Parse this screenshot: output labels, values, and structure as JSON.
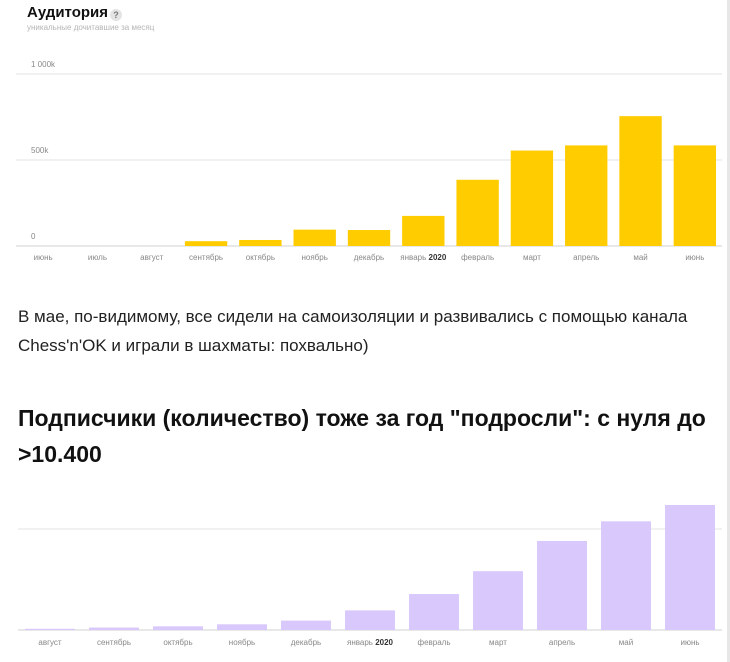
{
  "audience_chart": {
    "title": "Аудитория",
    "help_glyph": "?",
    "subtitle": "уникальные дочитавшие за месяц",
    "bar_color": "#ffcc00",
    "chart_data": {
      "type": "bar",
      "title": "Аудитория",
      "subtitle": "уникальные дочитавшие за месяц",
      "categories": [
        "июнь",
        "июль",
        "август",
        "сентябрь",
        "октябрь",
        "ноябрь",
        "декабрь",
        "январь 2020",
        "февраль",
        "март",
        "апрель",
        "май",
        "июнь"
      ],
      "values": [
        0,
        0,
        0,
        28,
        35,
        95,
        93,
        175,
        385,
        555,
        585,
        755,
        585
      ],
      "y_ticks": [
        0,
        500,
        1000
      ],
      "y_tick_labels": [
        "0",
        "500k",
        "1 000k"
      ],
      "ylim": [
        0,
        1000
      ],
      "grid": true,
      "legend": "none"
    }
  },
  "paragraph": "В мае, по-видимому, все сидели на самоизоляции и развивались с помощью канала Chess'n'OK и играли в шахматы: похвально)",
  "heading2": "Подписчики (количество) тоже за год \"подросли\": с нуля до >10.400",
  "subscribers_chart": {
    "bar_color": "#d9c8fb",
    "chart_data": {
      "type": "bar",
      "categories": [
        "август",
        "сентябрь",
        "октябрь",
        "ноябрь",
        "декабрь",
        "январь 2020",
        "февраль",
        "март",
        "апрель",
        "май",
        "июнь"
      ],
      "values": [
        0.15,
        0.3,
        0.45,
        0.7,
        1.15,
        2.4,
        4.4,
        7.2,
        10.9,
        13.3,
        15.3
      ],
      "ylim": [
        0,
        15.3
      ],
      "grid": true,
      "legend": "none"
    }
  }
}
